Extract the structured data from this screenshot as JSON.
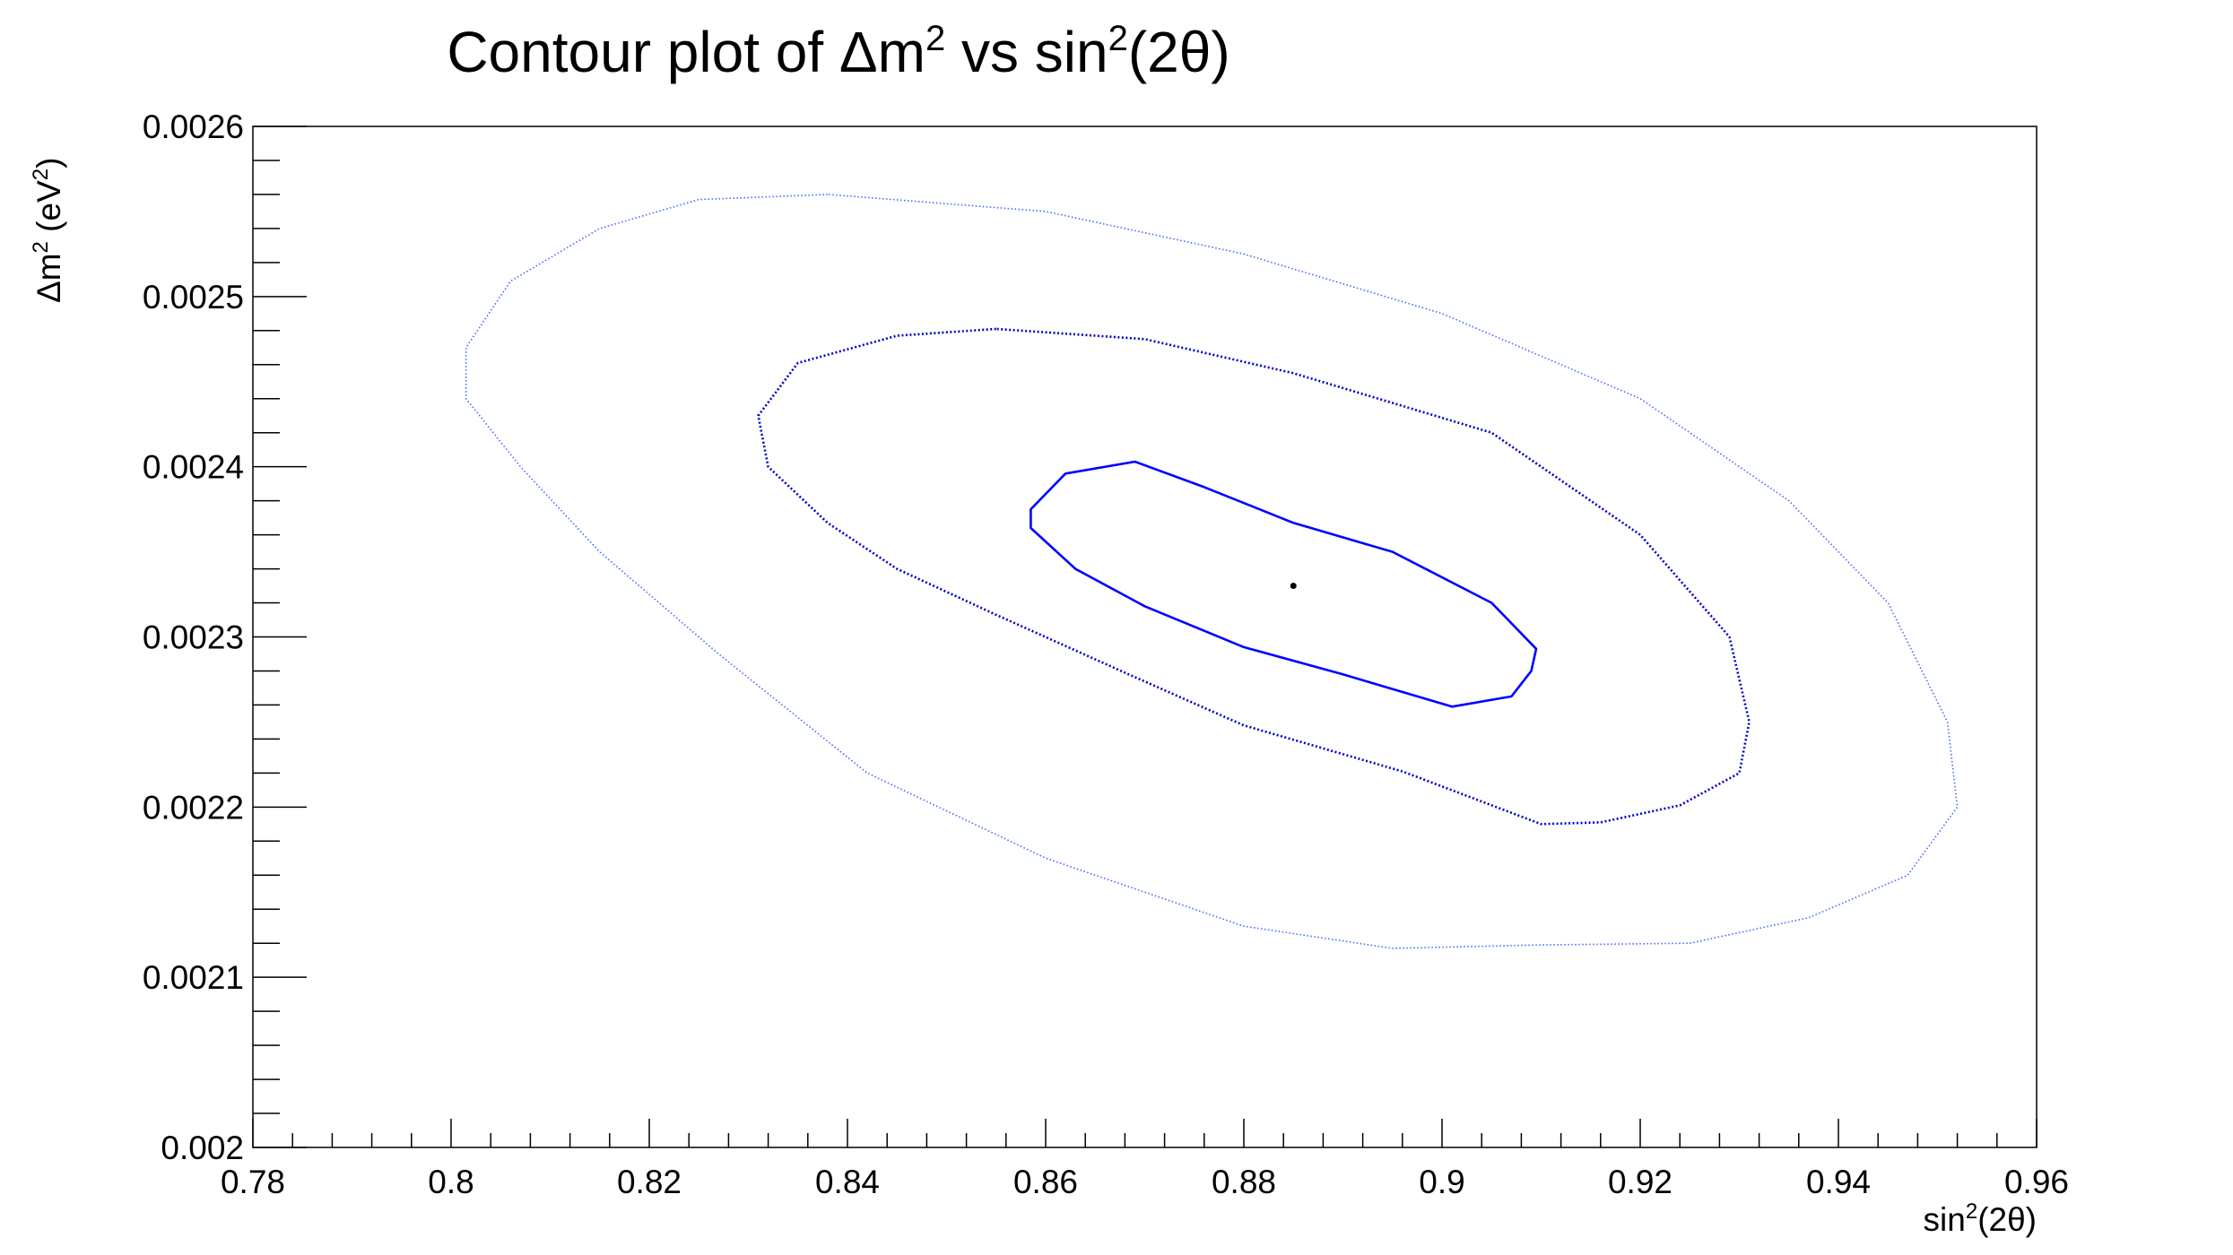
{
  "chart_data": {
    "type": "contour",
    "title": {
      "prefix": "Contour plot of   Δm",
      "sup1": "2",
      "mid": " vs sin",
      "sup2": "2",
      "suffix": "(2θ)"
    },
    "xlabel": {
      "prefix": "sin",
      "sup": "2",
      "suffix": "(2θ)"
    },
    "ylabel": {
      "prefix": "Δm",
      "sup1": "2",
      "mid": " (eV",
      "sup2": "2",
      "suffix": ")"
    },
    "xlim": [
      0.78,
      0.96
    ],
    "ylim": [
      0.002,
      0.0026
    ],
    "x_ticks": [
      {
        "value": 0.78,
        "label": "0.78"
      },
      {
        "value": 0.8,
        "label": "0.8"
      },
      {
        "value": 0.82,
        "label": "0.82"
      },
      {
        "value": 0.84,
        "label": "0.84"
      },
      {
        "value": 0.86,
        "label": "0.86"
      },
      {
        "value": 0.88,
        "label": "0.88"
      },
      {
        "value": 0.9,
        "label": "0.9"
      },
      {
        "value": 0.92,
        "label": "0.92"
      },
      {
        "value": 0.94,
        "label": "0.94"
      },
      {
        "value": 0.96,
        "label": "0.96"
      }
    ],
    "y_ticks": [
      {
        "value": 0.002,
        "label": "0.002"
      },
      {
        "value": 0.0021,
        "label": "0.0021"
      },
      {
        "value": 0.0022,
        "label": "0.0022"
      },
      {
        "value": 0.0023,
        "label": "0.0023"
      },
      {
        "value": 0.0024,
        "label": "0.0024"
      },
      {
        "value": 0.0025,
        "label": "0.0025"
      },
      {
        "value": 0.0026,
        "label": "0.0026"
      }
    ],
    "x_minor_step": 0.004,
    "y_minor_step": 2e-05,
    "best_fit": {
      "x": 0.885,
      "y": 0.00233
    },
    "contours": [
      {
        "color": "#0000ff",
        "style": "solid",
        "points": [
          [
            0.885,
            0.002367
          ],
          [
            0.876,
            0.002388
          ],
          [
            0.869,
            0.002403
          ],
          [
            0.862,
            0.002396
          ],
          [
            0.8585,
            0.002375
          ],
          [
            0.8585,
            0.002364
          ],
          [
            0.863,
            0.00234
          ],
          [
            0.87,
            0.002318
          ],
          [
            0.88,
            0.002294
          ],
          [
            0.89,
            0.002278
          ],
          [
            0.901,
            0.002259
          ],
          [
            0.907,
            0.002265
          ],
          [
            0.909,
            0.00228
          ],
          [
            0.9095,
            0.002293
          ],
          [
            0.905,
            0.00232
          ],
          [
            0.895,
            0.00235
          ],
          [
            0.885,
            0.002367
          ]
        ]
      },
      {
        "color": "#0000cc",
        "style": "dotted",
        "points": [
          [
            0.855,
            0.002481
          ],
          [
            0.845,
            0.002477
          ],
          [
            0.835,
            0.002461
          ],
          [
            0.831,
            0.00243
          ],
          [
            0.832,
            0.0024
          ],
          [
            0.838,
            0.002367
          ],
          [
            0.845,
            0.00234
          ],
          [
            0.855,
            0.002313
          ],
          [
            0.868,
            0.002279
          ],
          [
            0.88,
            0.002248
          ],
          [
            0.896,
            0.002221
          ],
          [
            0.91,
            0.00219
          ],
          [
            0.916,
            0.002191
          ],
          [
            0.924,
            0.002201
          ],
          [
            0.93,
            0.00222
          ],
          [
            0.931,
            0.00225
          ],
          [
            0.929,
            0.0023
          ],
          [
            0.92,
            0.00236
          ],
          [
            0.905,
            0.00242
          ],
          [
            0.885,
            0.002455
          ],
          [
            0.87,
            0.002475
          ],
          [
            0.855,
            0.002481
          ]
        ]
      },
      {
        "color": "#4466ff",
        "style": "fine-dotted",
        "points": [
          [
            0.838,
            0.00256
          ],
          [
            0.825,
            0.002557
          ],
          [
            0.815,
            0.00254
          ],
          [
            0.806,
            0.002509
          ],
          [
            0.8015,
            0.00247
          ],
          [
            0.8015,
            0.00244
          ],
          [
            0.807,
            0.0024
          ],
          [
            0.815,
            0.00235
          ],
          [
            0.827,
            0.00229
          ],
          [
            0.842,
            0.00222
          ],
          [
            0.86,
            0.00217
          ],
          [
            0.88,
            0.00213
          ],
          [
            0.895,
            0.002117
          ],
          [
            0.91,
            0.002119
          ],
          [
            0.925,
            0.00212
          ],
          [
            0.937,
            0.002135
          ],
          [
            0.947,
            0.00216
          ],
          [
            0.952,
            0.0022
          ],
          [
            0.951,
            0.00225
          ],
          [
            0.945,
            0.00232
          ],
          [
            0.935,
            0.00238
          ],
          [
            0.92,
            0.00244
          ],
          [
            0.9,
            0.00249
          ],
          [
            0.88,
            0.002525
          ],
          [
            0.86,
            0.00255
          ],
          [
            0.838,
            0.00256
          ]
        ]
      }
    ]
  }
}
